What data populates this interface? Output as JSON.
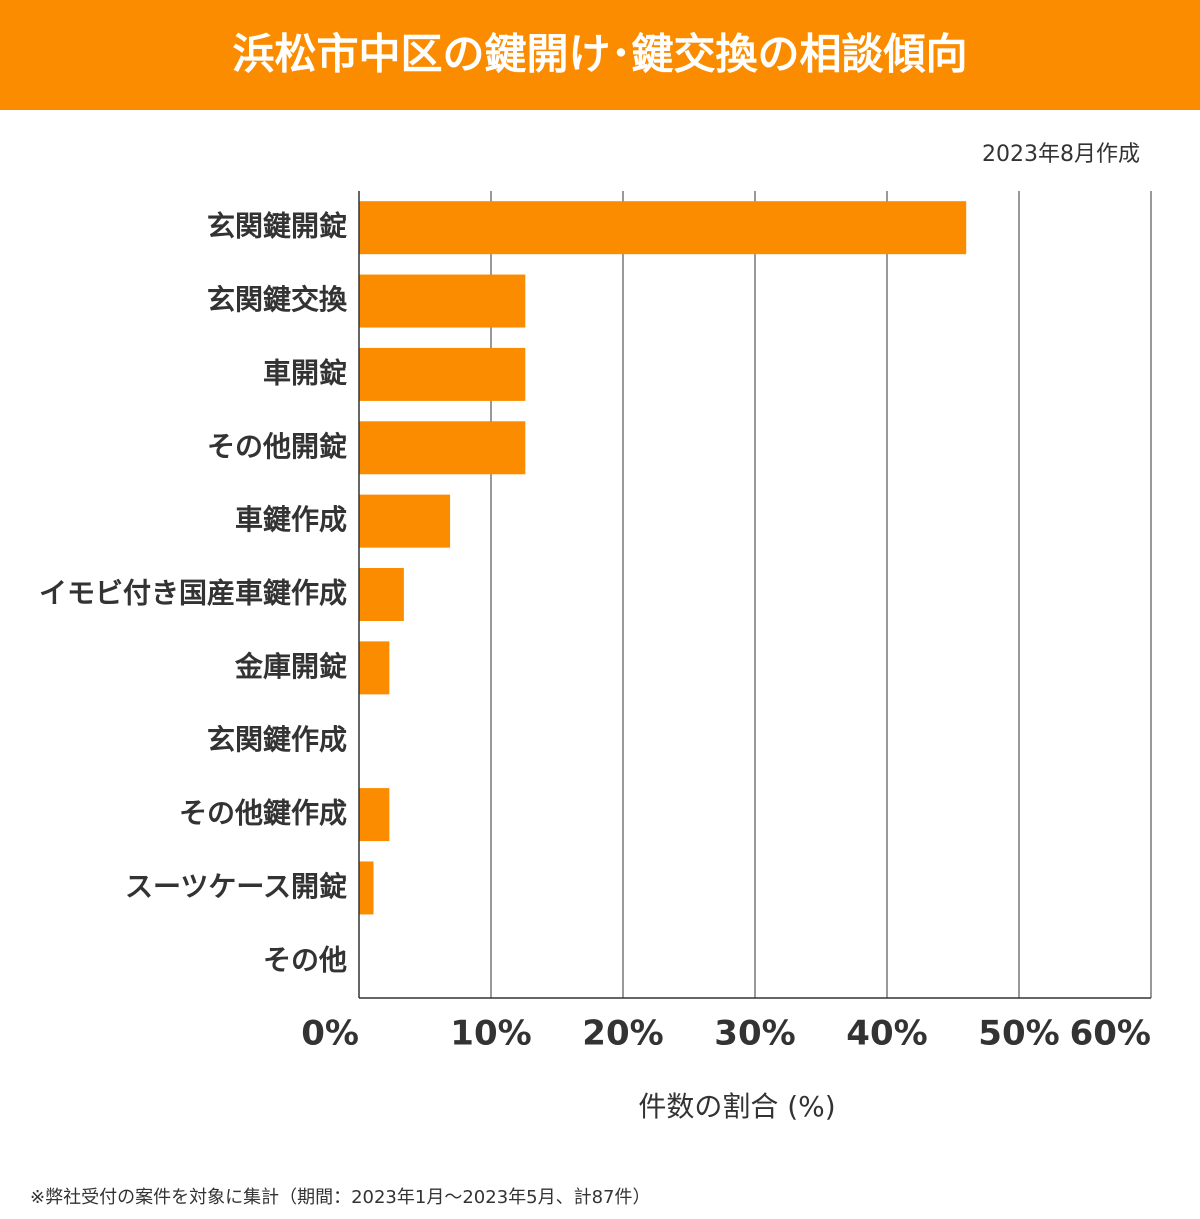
{
  "chart_data": {
    "type": "bar",
    "orientation": "horizontal",
    "title": "浜松市中区の鍵開け･鍵交換の相談傾向",
    "subtitle": "2023年8月作成",
    "categories": [
      "玄関鍵開錠",
      "玄関鍵交換",
      "車開錠",
      "その他開錠",
      "車鍵作成",
      "イモビ付き国産車鍵作成",
      "金庫開錠",
      "玄関鍵作成",
      "その他鍵作成",
      "スーツケース開錠",
      "その他"
    ],
    "values": [
      46.0,
      12.6,
      12.6,
      12.6,
      6.9,
      3.4,
      2.3,
      0,
      2.3,
      1.1,
      0
    ],
    "color": "#fb8c00",
    "xlim": [
      0,
      60
    ],
    "xticks": [
      {
        "value": 0,
        "label": "0%"
      },
      {
        "value": 10,
        "label": "10%"
      },
      {
        "value": 20,
        "label": "20%"
      },
      {
        "value": 30,
        "label": "30%"
      },
      {
        "value": 40,
        "label": "40%"
      },
      {
        "value": 50,
        "label": "50%"
      },
      {
        "value": 60,
        "label": "60%"
      }
    ],
    "xlabel": "件数の割合 (%)",
    "grid": true,
    "footnote": "※弊社受付の案件を対象に集計（期間：2023年1月～2023年5月、計87件）"
  }
}
